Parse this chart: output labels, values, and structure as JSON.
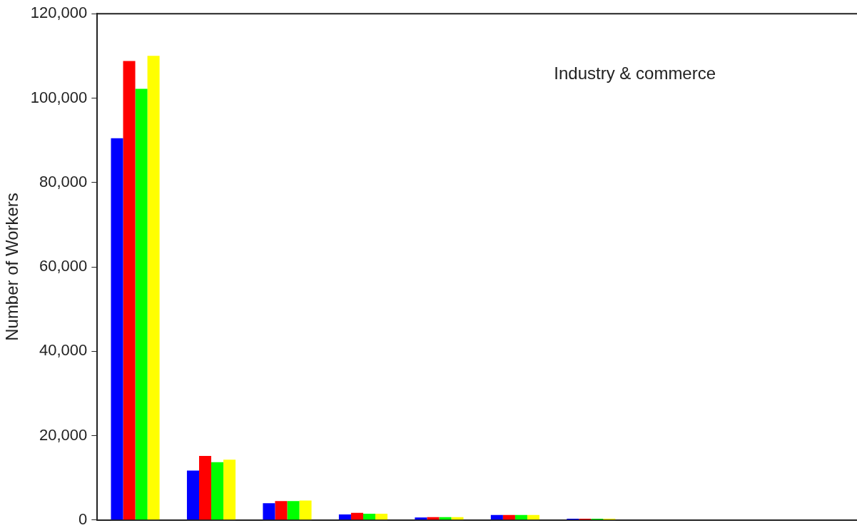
{
  "chart_data": {
    "type": "bar",
    "categories": [
      null,
      null,
      null,
      null,
      null,
      null,
      null,
      null,
      null,
      null
    ],
    "series": [
      {
        "color": "#0000ff",
        "values": [
          90500,
          11700,
          4000,
          1300,
          600,
          1200,
          300,
          0,
          0,
          0
        ]
      },
      {
        "color": "#ff0000",
        "values": [
          108800,
          15200,
          4500,
          1700,
          700,
          1200,
          300,
          0,
          0,
          0
        ]
      },
      {
        "color": "#00ff00",
        "values": [
          102200,
          13700,
          4500,
          1500,
          700,
          1200,
          300,
          0,
          0,
          0
        ]
      },
      {
        "color": "#ffff00",
        "values": [
          110000,
          14300,
          4600,
          1500,
          700,
          1200,
          300,
          0,
          0,
          0
        ]
      }
    ],
    "ylabel": "Number of Workers",
    "ylim": [
      0,
      120000
    ],
    "yticks": [
      {
        "value": 0,
        "label": "0"
      },
      {
        "value": 20000,
        "label": "20,000"
      },
      {
        "value": 40000,
        "label": "40,000"
      },
      {
        "value": 60000,
        "label": "60,000"
      },
      {
        "value": 80000,
        "label": "80,000"
      },
      {
        "value": 100000,
        "label": "100,000"
      },
      {
        "value": 120000,
        "label": "120,000"
      }
    ],
    "annotations": [
      "Industry & commerce"
    ],
    "tick_labels": "y",
    "grid": false,
    "legend": false
  }
}
